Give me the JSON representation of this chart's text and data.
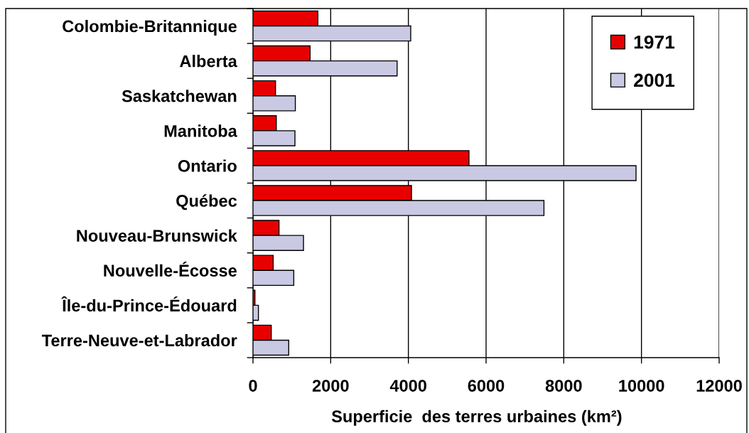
{
  "chart_data": {
    "type": "bar",
    "orientation": "horizontal",
    "categories": [
      "Colombie-Britannique",
      "Alberta",
      "Saskatchewan",
      "Manitoba",
      "Ontario",
      "Québec",
      "Nouveau-Brunswick",
      "Nouvelle-Écosse",
      "Île-du-Prince-Édouard",
      "Terre-Neuve-et-Labrador"
    ],
    "series": [
      {
        "name": "1971",
        "color": "#e80000",
        "values": [
          1670,
          1470,
          580,
          600,
          5560,
          4080,
          670,
          520,
          50,
          470
        ]
      },
      {
        "name": "2001",
        "color": "#c9c9e3",
        "values": [
          4060,
          3710,
          1090,
          1080,
          9860,
          7490,
          1300,
          1050,
          140,
          920
        ]
      }
    ],
    "xlim": [
      0,
      12000
    ],
    "xticks": [
      0,
      2000,
      4000,
      6000,
      8000,
      10000,
      12000
    ],
    "xlabel": "Superficie  des terres urbaines (km²)",
    "grid": "x",
    "legend": "top right"
  }
}
